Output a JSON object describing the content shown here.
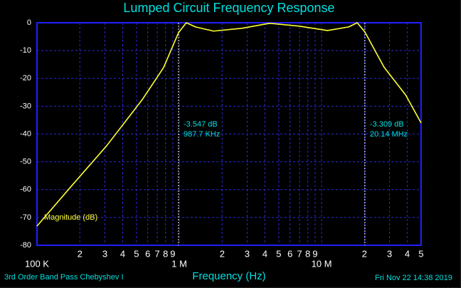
{
  "chart_data": {
    "type": "line",
    "title": "Lumped Circuit Frequency Response",
    "xlabel": "Frequency (Hz)",
    "footer_left": "3rd Order Band Pass Chebyshev I",
    "footer_right": "Fri Nov 22 14:38 2019",
    "xscale": "log",
    "grid": true,
    "xlim": [
      100000,
      50000000
    ],
    "ylim": [
      -80,
      0
    ],
    "yticks": [
      0,
      -10,
      -20,
      -30,
      -40,
      -50,
      -60,
      -70,
      -80
    ],
    "xticks": [
      {
        "value": 100000,
        "label": "100 K"
      },
      {
        "value": 200000,
        "label": "2"
      },
      {
        "value": 300000,
        "label": "3"
      },
      {
        "value": 400000,
        "label": "4"
      },
      {
        "value": 500000,
        "label": "5"
      },
      {
        "value": 600000,
        "label": "6"
      },
      {
        "value": 700000,
        "label": "7"
      },
      {
        "value": 800000,
        "label": "8"
      },
      {
        "value": 900000,
        "label": "9"
      },
      {
        "value": 1000000,
        "label": "1 M"
      },
      {
        "value": 2000000,
        "label": "2"
      },
      {
        "value": 3000000,
        "label": "3"
      },
      {
        "value": 4000000,
        "label": "4"
      },
      {
        "value": 5000000,
        "label": "5"
      },
      {
        "value": 6000000,
        "label": "6"
      },
      {
        "value": 7000000,
        "label": "7"
      },
      {
        "value": 8000000,
        "label": "8"
      },
      {
        "value": 9000000,
        "label": "9"
      },
      {
        "value": 10000000,
        "label": "10 M"
      },
      {
        "value": 20000000,
        "label": "2"
      },
      {
        "value": 30000000,
        "label": "3"
      },
      {
        "value": 40000000,
        "label": "4"
      },
      {
        "value": 50000000,
        "label": "5"
      }
    ],
    "x": [
      100000,
      174000,
      309000,
      550000,
      776000,
      987700,
      1120000,
      1300000,
      1740000,
      2750000,
      4300000,
      6900000,
      11000000,
      15500000,
      17800000,
      20140000,
      27500000,
      39000000,
      50000000
    ],
    "series": [
      {
        "name": "Magnitude (dB)",
        "color": "#ffff33",
        "values": [
          -73.1,
          -58.8,
          -44.2,
          -27.6,
          -16.1,
          -3.547,
          0,
          -1.5,
          -3.0,
          -2.0,
          -0.2,
          -1.2,
          -2.8,
          -1.5,
          0,
          -3.309,
          -16,
          -26,
          -36
        ]
      }
    ],
    "markers": [
      {
        "x": 987700,
        "texts": [
          "-3.547 dB",
          "987.7 KHz"
        ]
      },
      {
        "x": 20140000,
        "texts": [
          "-3.309 dB",
          "20.14 MHz"
        ]
      }
    ]
  }
}
